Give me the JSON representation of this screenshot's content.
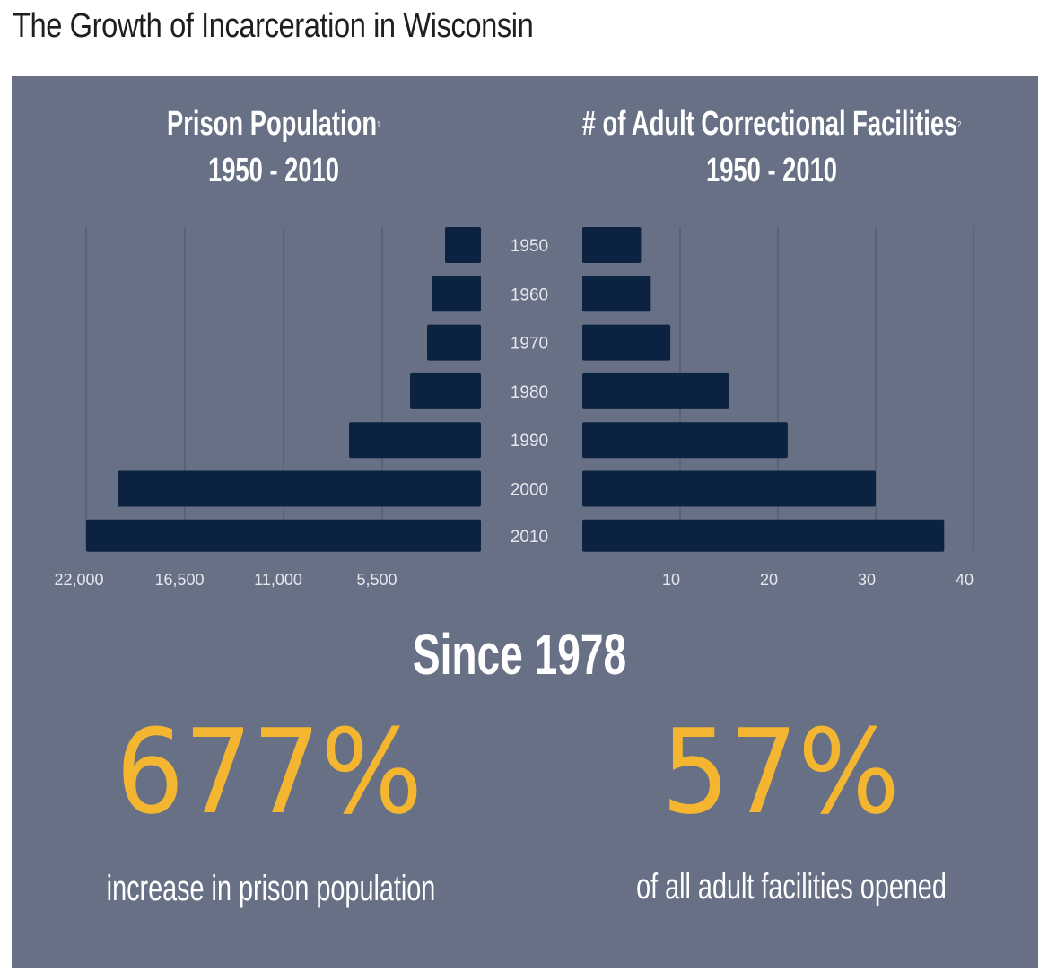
{
  "page_title": "The Growth of Incarceration in Wisconsin",
  "colors": {
    "panel_background": "#677084",
    "bar": "#0b2340",
    "grid": "#4d5566",
    "axis_text": "#e6e8ee",
    "highlight": "#f4b630",
    "text": "#ffffff"
  },
  "left_chart": {
    "title_line1": "Prison Population",
    "title_note": "1",
    "title_line2": "1950 - 2010"
  },
  "right_chart": {
    "title_line1": "# of Adult Correctional Facilities",
    "title_note": "2",
    "title_line2": "1950 - 2010"
  },
  "chart_data": [
    {
      "type": "bar",
      "orientation": "horizontal",
      "direction": "right-to-left",
      "title": "Prison Population 1950 - 2010",
      "categories": [
        "1950",
        "1960",
        "1970",
        "1980",
        "1990",
        "2000",
        "2010"
      ],
      "values": [
        2000,
        2750,
        3000,
        3950,
        7350,
        20250,
        22000
      ],
      "xticks": [
        "22,000",
        "16,500",
        "11,000",
        "5,500"
      ],
      "xtick_values": [
        22000,
        16500,
        11000,
        5500
      ],
      "xlim": [
        0,
        22000
      ],
      "grid": true
    },
    {
      "type": "bar",
      "orientation": "horizontal",
      "direction": "left-to-right",
      "title": "# of Adult Correctional Facilities 1950 - 2010",
      "categories": [
        "1950",
        "1960",
        "1970",
        "1980",
        "1990",
        "2000",
        "2010"
      ],
      "values": [
        6,
        7,
        9,
        15,
        21,
        30,
        37
      ],
      "xticks": [
        "10",
        "20",
        "30",
        "40"
      ],
      "xtick_values": [
        10,
        20,
        30,
        40
      ],
      "xlim": [
        0,
        40
      ],
      "grid": true
    }
  ],
  "summary": {
    "heading": "Since 1978",
    "stat1_value": "677%",
    "stat1_caption": "increase in prison population",
    "stat2_value": "57%",
    "stat2_caption": "of all adult facilities opened"
  }
}
